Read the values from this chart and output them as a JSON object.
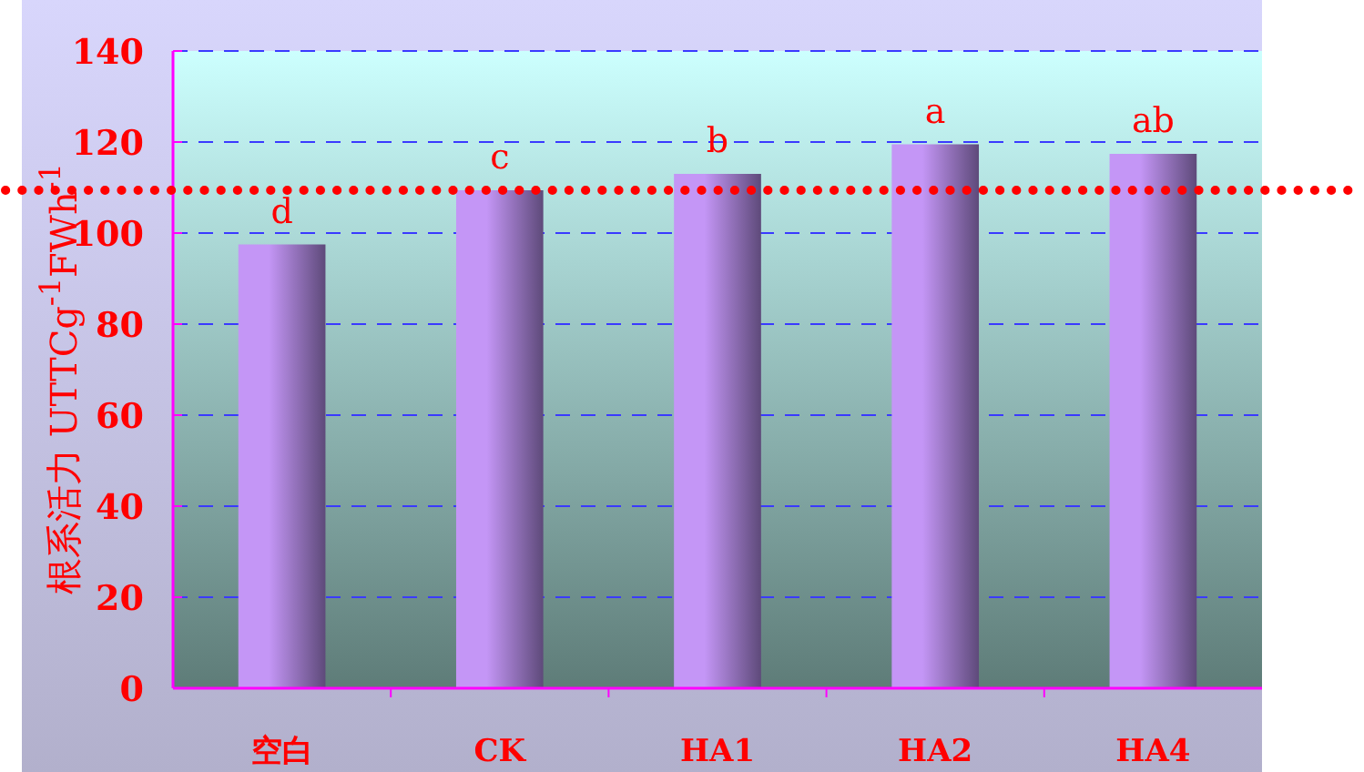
{
  "chart_data": {
    "type": "bar",
    "ylabel": "根系活力 UTTCg$^{-1}$FWh$^{-1}$",
    "categories": [
      "空白",
      "CK",
      "HA1",
      "HA2",
      "HA4"
    ],
    "values": [
      97.5,
      109.4,
      113,
      119.5,
      117.4
    ],
    "color": "#c496f6",
    "ylim": [
      0,
      140
    ],
    "yticks": [
      0,
      20,
      40,
      60,
      80,
      100,
      120,
      140
    ],
    "grid": "y",
    "annotations": [
      {
        "text": "d",
        "x": "空白",
        "y": 97.5
      },
      {
        "text": "c",
        "x": "CK",
        "y": 109.4
      },
      {
        "text": "b",
        "x": "HA1",
        "y": 113
      },
      {
        "text": "a",
        "x": "HA2",
        "y": 119.5
      },
      {
        "text": "ab",
        "x": "HA4",
        "y": 117.4
      }
    ],
    "ref_lines": [
      {
        "axis": "y",
        "value": 109.4,
        "color": "#ff0000",
        "line_style": "dotted"
      }
    ]
  }
}
